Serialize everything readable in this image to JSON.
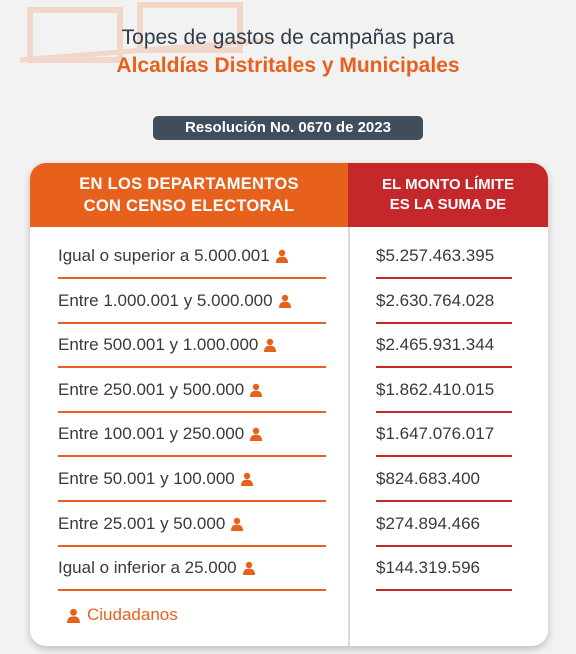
{
  "title": {
    "line1": "Topes de gastos de campañas para",
    "line2": "Alcaldías Distritales y Municipales"
  },
  "resolution": "Resolución No. 0670 de 2023",
  "table": {
    "header_left": "EN LOS DEPARTAMENTOS\nCON CENSO ELECTORAL",
    "header_right": "EL MONTO LÍMITE\nES LA SUMA DE",
    "rows": [
      {
        "range": "Igual o superior a 5.000.001",
        "amount": "$5.257.463.395"
      },
      {
        "range": "Entre 1.000.001 y 5.000.000",
        "amount": "$2.630.764.028"
      },
      {
        "range": "Entre 500.001 y 1.000.000",
        "amount": "$2.465.931.344"
      },
      {
        "range": "Entre 250.001  y 500.000",
        "amount": "$1.862.410.015"
      },
      {
        "range": "Entre 100.001 y 250.000",
        "amount": "$1.647.076.017"
      },
      {
        "range": "Entre 50.001 y 100.000",
        "amount": "$824.683.400"
      },
      {
        "range": "Entre 25.001 y 50.000",
        "amount": "$274.894.466"
      },
      {
        "range": "Igual o inferior a 25.000",
        "amount": "$144.319.596"
      }
    ]
  },
  "legend": {
    "icon": "person-icon",
    "label": "Ciudadanos"
  },
  "colors": {
    "orange": "#e8611c",
    "red": "#c5282a",
    "dark": "#3f4d5c"
  }
}
